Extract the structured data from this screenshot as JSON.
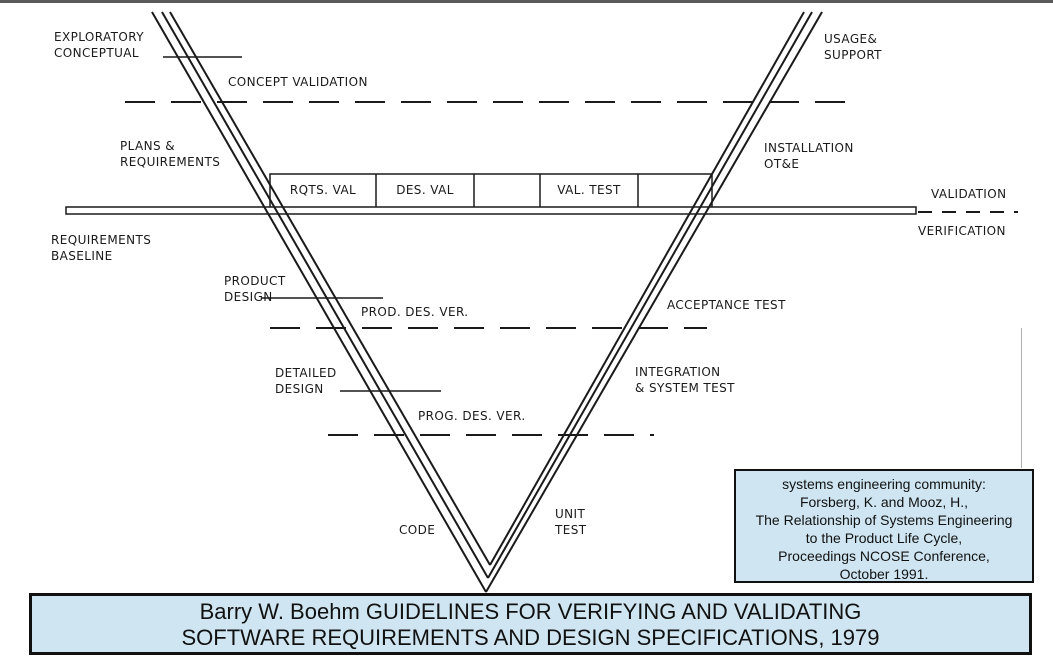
{
  "left_labels": {
    "exploratory": "EXPLORATORY\nCONCEPTUAL",
    "concept_validation": "CONCEPT VALIDATION",
    "plans": "PLANS &\nREQUIREMENTS",
    "req_baseline": "REQUIREMENTS\nBASELINE",
    "product_design": "PRODUCT\nDESIGN",
    "prod_des_ver": "PROD. DES. VER.",
    "detailed_design": "DETAILED\nDESIGN",
    "prog_des_ver": "PROG. DES. VER.",
    "code": "CODE"
  },
  "right_labels": {
    "usage": "USAGE&\nSUPPORT",
    "installation": "INSTALLATION\nOT&E",
    "validation": "VALIDATION",
    "verification": "VERIFICATION",
    "acceptance": "ACCEPTANCE TEST",
    "integration": "INTEGRATION\n& SYSTEM TEST",
    "unit_test": "UNIT\nTEST"
  },
  "validation_cells": [
    "RQTS. VAL",
    "DES. VAL",
    "",
    "VAL. TEST",
    ""
  ],
  "reference": [
    "systems engineering community:",
    "Forsberg, K. and Mooz, H.,",
    "The Relationship of Systems Engineering",
    "to the Product Life Cycle,",
    "Proceedings NCOSE Conference,",
    "October 1991."
  ],
  "caption": {
    "line1": "Barry W. Boehm GUIDELINES FOR VERIFYING AND VALIDATING",
    "line2": "SOFTWARE REQUIREMENTS AND DESIGN SPECIFICATIONS, 1979"
  },
  "colors": {
    "box_fill": "#cfe6f2",
    "line": "#1a1a1a"
  }
}
